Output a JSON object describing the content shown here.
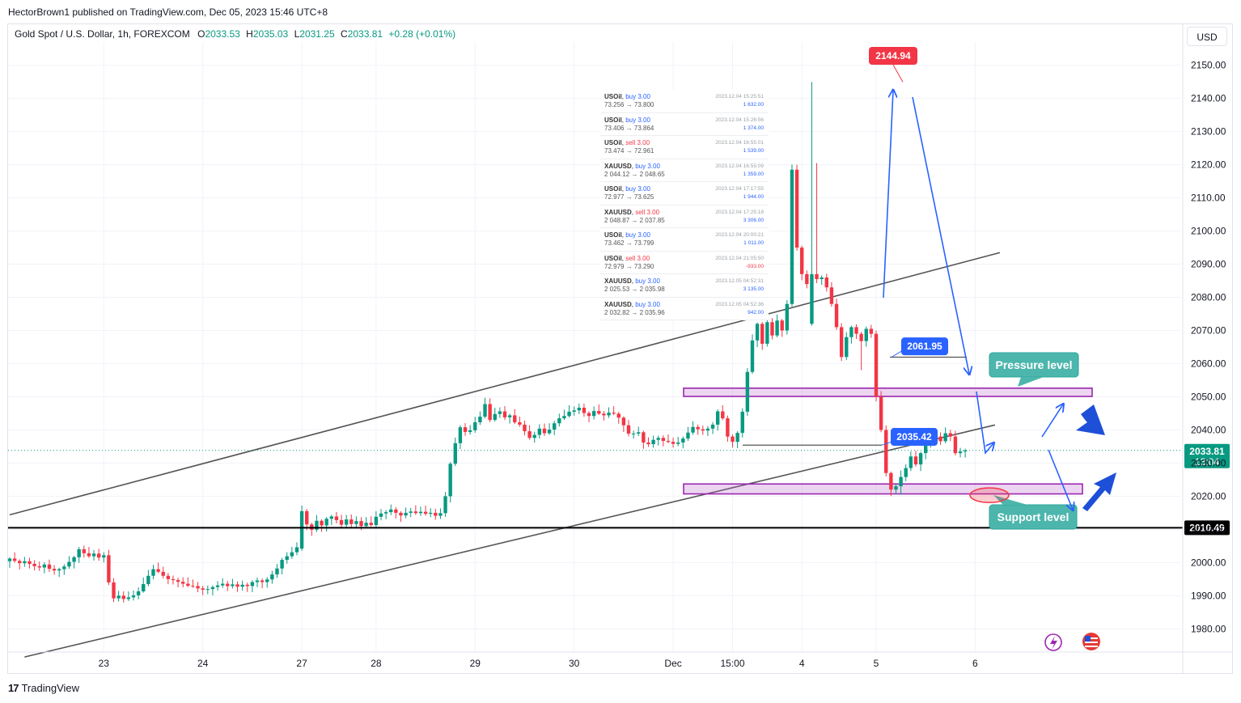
{
  "header": {
    "text": "HectorBrown1 published on TradingView.com, Dec 05, 2023 15:46 UTC+8"
  },
  "legend": {
    "symbol": "Gold Spot / U.S. Dollar, 1h, FOREXCOM",
    "o_label": "O",
    "o": "2033.53",
    "h_label": "H",
    "h": "2035.03",
    "l_label": "L",
    "l": "2031.25",
    "c_label": "C",
    "c": "2033.81",
    "change": "+0.28 (+0.01%)"
  },
  "currency": "USD",
  "footer": {
    "brand": "TradingView",
    "logo": "17"
  },
  "colors": {
    "up": "#089981",
    "down": "#f23645",
    "accent": "#2962ff",
    "zone": "#9c27b0",
    "callout": "#4db6ac"
  },
  "icons": [
    "lightning-icon",
    "us-flag-icon",
    "tradingview-logo-icon"
  ],
  "trades": [
    {
      "symbol": "USOil",
      "side": "buy 3.00",
      "prices": "73.256 → 73.800",
      "date": "2023.12.04 15:25:51",
      "pl": "1 632.00"
    },
    {
      "symbol": "USOil",
      "side": "buy 3.00",
      "prices": "73.406 → 73.864",
      "date": "2023.12.04 15:26:56",
      "pl": "1 374.00"
    },
    {
      "symbol": "USOil",
      "side": "sell 3.00",
      "prices": "73.474 → 72.961",
      "date": "2023.12.04 16:55:01",
      "pl": "1 539.00"
    },
    {
      "symbol": "XAUUSD",
      "side": "buy 3.00",
      "prices": "2 044.12 → 2 048.65",
      "date": "2023.12.04 16:55:09",
      "pl": "1 359.00"
    },
    {
      "symbol": "USOil",
      "side": "buy 3.00",
      "prices": "72.977 → 73.625",
      "date": "2023.12.04 17:17:55",
      "pl": "1 944.00"
    },
    {
      "symbol": "XAUUSD",
      "side": "sell 3.00",
      "prices": "2 048.87 → 2 037.85",
      "date": "2023.12.04 17:25:18",
      "pl": "3 306.00"
    },
    {
      "symbol": "USOil",
      "side": "buy 3.00",
      "prices": "73.462 → 73.799",
      "date": "2023.12.04 20:00:21",
      "pl": "1 011.00"
    },
    {
      "symbol": "USOil",
      "side": "sell 3.00",
      "prices": "72.979 → 73.290",
      "date": "2023.12.04 21:05:50",
      "pl": "-933.00"
    },
    {
      "symbol": "XAUUSD",
      "side": "buy 3.00",
      "prices": "2 025.53 → 2 035.98",
      "date": "2023.12.05 04:52:31",
      "pl": "3 135.00"
    },
    {
      "symbol": "XAUUSD",
      "side": "buy 3.00",
      "prices": "2 032.82 → 2 035.96",
      "date": "2023.12.05 04:52:36",
      "pl": "942.00"
    }
  ],
  "chart_data": {
    "type": "candlestick",
    "ylim": [
      1973,
      2157
    ],
    "y_ticks": [
      1980,
      1990,
      2000,
      2010,
      2020,
      2030,
      2040,
      2050,
      2060,
      2070,
      2080,
      2090,
      2100,
      2110,
      2120,
      2130,
      2140,
      2150
    ],
    "y_tick_labels": [
      "1980.00",
      "1990.00",
      "2000.00",
      "2010.00",
      "2020.00",
      "2030.00",
      "2040.00",
      "2050.00",
      "2060.00",
      "2070.00",
      "2080.00",
      "2090.00",
      "2100.00",
      "2110.00",
      "2120.00",
      "2130.00",
      "2140.00",
      "2150.00"
    ],
    "x_tick_labels": [
      "23",
      "24",
      "27",
      "28",
      "29",
      "30",
      "Dec",
      "15:00",
      "4",
      "5",
      "6"
    ],
    "x_tick_index": [
      19,
      39,
      59,
      74,
      94,
      114,
      134,
      146,
      160,
      175,
      195
    ],
    "grid": true,
    "candles_hourly_close": [
      2001.2,
      2000.5,
      1999.8,
      2000.4,
      1999.6,
      1998.9,
      1998.5,
      1999.4,
      1998.1,
      1997.6,
      1998.0,
      1998.8,
      2000.2,
      2001.6,
      2004.0,
      2002.8,
      2001.9,
      2002.7,
      2001.5,
      2002.2,
      1994.0,
      1989.2,
      1990.0,
      1989.0,
      1989.5,
      1990.1,
      1991.3,
      1993.5,
      1996.0,
      1998.0,
      1997.2,
      1996.0,
      1995.0,
      1994.7,
      1994.2,
      1993.6,
      1993.0,
      1992.9,
      1992.2,
      1991.8,
      1992.0,
      1992.6,
      1993.1,
      1993.6,
      1992.9,
      1993.4,
      1992.7,
      1993.3,
      1992.9,
      1994.1,
      1994.6,
      1994.1,
      1994.9,
      1996.4,
      1998.2,
      2000.8,
      2001.9,
      2003.1,
      2004.6,
      2015.5,
      2011.5,
      2009.9,
      2012.6,
      2011.2,
      2013.2,
      2013.9,
      2012.8,
      2011.4,
      2013.0,
      2011.6,
      2012.5,
      2011.0,
      2012.0,
      2011.3,
      2013.8,
      2014.8,
      2015.2,
      2016.0,
      2015.0,
      2014.2,
      2015.0,
      2015.4,
      2014.9,
      2015.3,
      2014.7,
      2015.0,
      2014.1,
      2014.9,
      2020.0,
      2029.8,
      2036.0,
      2040.8,
      2039.4,
      2039.9,
      2042.3,
      2044.0,
      2047.8,
      2043.0,
      2044.8,
      2045.6,
      2043.8,
      2044.4,
      2042.3,
      2041.6,
      2039.6,
      2037.6,
      2038.5,
      2040.4,
      2039.0,
      2040.1,
      2042.0,
      2043.5,
      2044.2,
      2045.5,
      2045.9,
      2046.7,
      2045.1,
      2044.2,
      2045.7,
      2044.9,
      2044.4,
      2045.2,
      2044.9,
      2043.7,
      2041.4,
      2038.9,
      2038.9,
      2039.3,
      2036.2,
      2035.7,
      2037.0,
      2037.6,
      2036.7,
      2036.4,
      2035.8,
      2036.2,
      2037.4,
      2039.2,
      2040.9,
      2040.2,
      2039.8,
      2040.4,
      2041.6,
      2045.6,
      2043.5,
      2038.0,
      2036.4,
      2039.1,
      2045.5,
      2057.5,
      2067.0,
      2072.0,
      2066.0,
      2072.5,
      2068.5,
      2073.0,
      2070.0,
      2078.0,
      2118.5,
      2095.0,
      2087.0,
      2084.0,
      2087.0,
      2085.5,
      2086.0,
      2083.0,
      2078.0,
      2071.0,
      2062.0,
      2068.0,
      2071.0,
      2069.0,
      2066.8,
      2070.5,
      2069.0,
      2050.0,
      2040.0,
      2027.0,
      2022.0,
      2023.0,
      2025.8,
      2028.5,
      2032.0,
      2029.6,
      2033.0,
      2036.5,
      2039.0,
      2038.0,
      2036.6,
      2039.0,
      2038.0,
      2033.0,
      2033.5,
      2033.81
    ],
    "series": [
      {
        "name": "",
        "type": "line",
        "desc": "upper channel",
        "points": [
          [
            0,
            2014.4
          ],
          [
            200,
            2093.5
          ]
        ]
      },
      {
        "name": "",
        "type": "line",
        "desc": "lower channel",
        "points": [
          [
            3,
            1971.5
          ],
          [
            199,
            2041.5
          ]
        ]
      }
    ],
    "zones": [
      {
        "name": "Pressure level",
        "low": 2050.1,
        "high": 2052.6
      },
      {
        "name": "Support level",
        "low": 2020.7,
        "high": 2023.7
      }
    ],
    "horizontal_lines": [
      {
        "label": "2010.49",
        "value": 2010.49
      }
    ],
    "annotations": [
      {
        "text": "2144.94",
        "value": 2144.94
      },
      {
        "text": "2061.95",
        "value": 2061.95
      },
      {
        "text": "2035.42",
        "value": 2035.42
      },
      {
        "text": "Pressure level"
      },
      {
        "text": "Support level"
      }
    ],
    "last_price": {
      "value": "2033.81",
      "countdown": "13:04"
    }
  }
}
